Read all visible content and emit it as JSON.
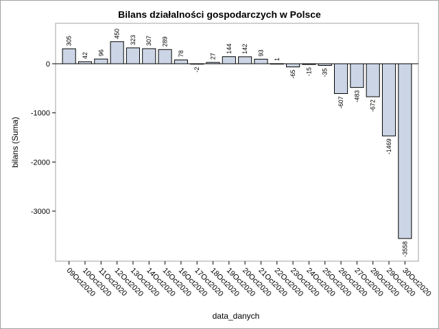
{
  "chart_data": {
    "type": "bar",
    "title": "Bilans działalności gospodarczych w Polsce",
    "xlabel": "data_danych",
    "ylabel": "bilans (Suma)",
    "categories": [
      "09Oct2020",
      "10Oct2020",
      "11Oct2020",
      "12Oct2020",
      "13Oct2020",
      "14Oct2020",
      "15Oct2020",
      "16Oct2020",
      "17Oct2020",
      "18Oct2020",
      "19Oct2020",
      "20Oct2020",
      "21Oct2020",
      "22Oct2020",
      "23Oct2020",
      "24Oct2020",
      "25Oct2020",
      "26Oct2020",
      "27Oct2020",
      "28Oct2020",
      "29Oct2020",
      "30Oct2020"
    ],
    "values": [
      305,
      42,
      96,
      450,
      323,
      307,
      289,
      78,
      -2,
      27,
      144,
      142,
      93,
      1,
      -65,
      -15,
      -35,
      -607,
      -483,
      -672,
      -1469,
      -3558
    ],
    "ylim": [
      -4000,
      800
    ],
    "yticks": [
      0,
      -1000,
      -2000,
      -3000
    ],
    "bar_fill": "#cbd5e5",
    "bar_stroke": "#000000",
    "grid": false
  }
}
